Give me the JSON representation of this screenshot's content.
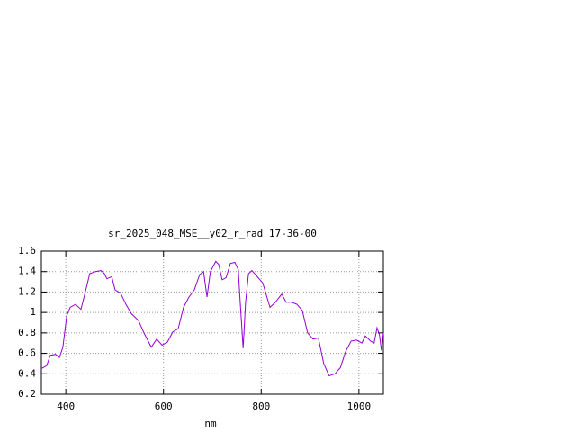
{
  "chart_data": {
    "type": "line",
    "title": "sr_2025_048_MSE__y02_r_rad 17-36-00",
    "x_label": "nm",
    "series": [
      {
        "color": "#9400d3",
        "x": [
          350,
          361,
          368,
          379,
          387,
          394,
          402,
          409,
          420,
          431,
          440,
          449,
          461,
          472,
          479,
          484,
          494,
          501,
          512,
          523,
          534,
          549,
          560,
          575,
          586,
          597,
          608,
          619,
          630,
          641,
          652,
          663,
          674,
          682,
          689,
          696,
          707,
          713,
          720,
          728,
          737,
          746,
          753,
          757,
          763,
          768,
          774,
          781,
          792,
          803,
          818,
          829,
          842,
          851,
          862,
          873,
          884,
          895,
          906,
          917,
          928,
          939,
          951,
          962,
          973,
          984,
          995,
          1006,
          1013,
          1024,
          1031,
          1037,
          1042,
          1046,
          1050
        ],
        "values": [
          0.45,
          0.48,
          0.58,
          0.59,
          0.56,
          0.66,
          0.97,
          1.05,
          1.08,
          1.03,
          1.2,
          1.38,
          1.4,
          1.41,
          1.38,
          1.33,
          1.35,
          1.22,
          1.19,
          1.08,
          0.99,
          0.92,
          0.8,
          0.66,
          0.74,
          0.68,
          0.71,
          0.81,
          0.84,
          1.05,
          1.15,
          1.22,
          1.37,
          1.4,
          1.15,
          1.4,
          1.5,
          1.47,
          1.32,
          1.34,
          1.48,
          1.49,
          1.42,
          1.1,
          0.65,
          1.1,
          1.38,
          1.41,
          1.35,
          1.29,
          1.05,
          1.1,
          1.18,
          1.1,
          1.1,
          1.08,
          1.02,
          0.8,
          0.74,
          0.75,
          0.5,
          0.38,
          0.4,
          0.46,
          0.62,
          0.72,
          0.73,
          0.7,
          0.77,
          0.72,
          0.7,
          0.85,
          0.78,
          0.63,
          0.8
        ]
      }
    ],
    "xlim": [
      350,
      1050
    ],
    "xticks": [
      400,
      600,
      800,
      1000
    ],
    "ylim": [
      0.2,
      1.6
    ],
    "yticks": [
      0.2,
      0.4,
      0.6,
      0.8,
      1,
      1.2,
      1.4,
      1.6
    ],
    "grid": true
  }
}
